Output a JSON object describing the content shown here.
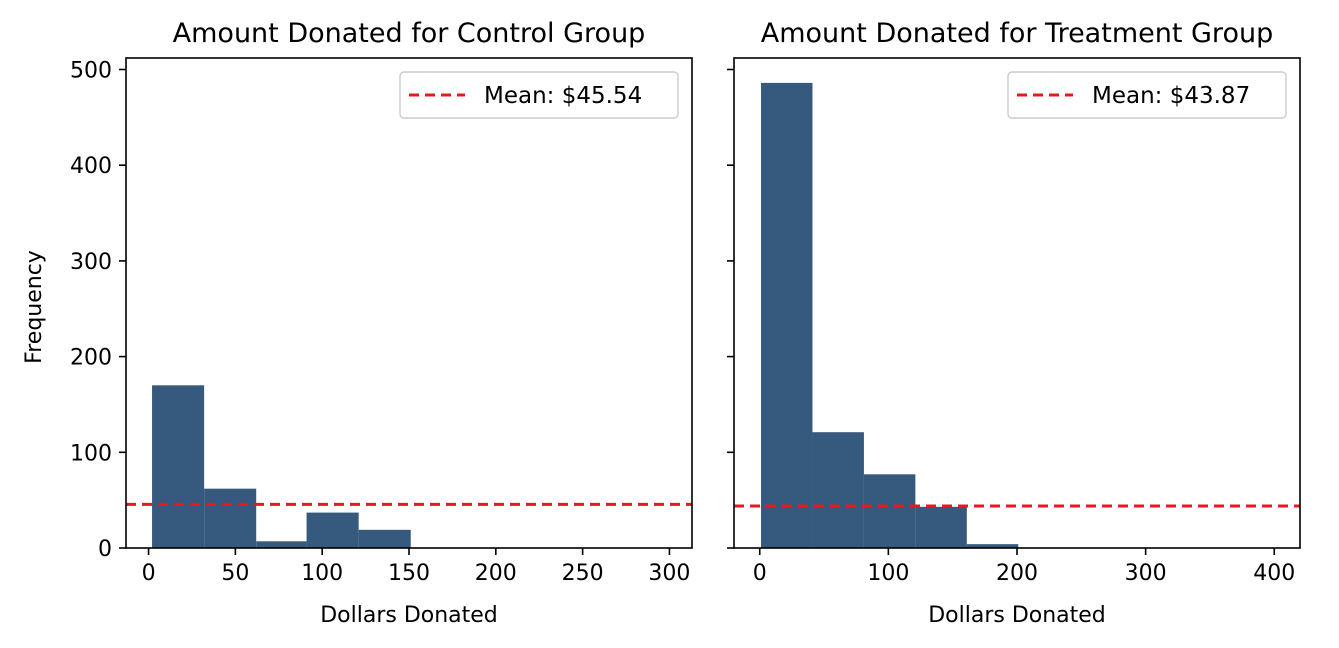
{
  "chart_data": [
    {
      "type": "bar",
      "title": "Amount Donated for Control Group",
      "xlabel": "Dollars Donated",
      "ylabel": "Frequency",
      "xlim": [
        -13,
        313
      ],
      "ylim": [
        0,
        512
      ],
      "xticks": [
        0,
        50,
        100,
        150,
        200,
        250,
        300
      ],
      "yticks": [
        0,
        100,
        200,
        300,
        400,
        500
      ],
      "bins": [
        {
          "x0": 2,
          "x1": 32,
          "value": 170
        },
        {
          "x0": 32,
          "x1": 62,
          "value": 62
        },
        {
          "x0": 62,
          "x1": 91,
          "value": 7
        },
        {
          "x0": 91,
          "x1": 121,
          "value": 37
        },
        {
          "x0": 121,
          "x1": 151,
          "value": 19
        },
        {
          "x0": 151,
          "x1": 181,
          "value": 0
        },
        {
          "x0": 181,
          "x1": 210,
          "value": 0
        },
        {
          "x0": 210,
          "x1": 240,
          "value": 0
        },
        {
          "x0": 240,
          "x1": 270,
          "value": 0
        },
        {
          "x0": 270,
          "x1": 300,
          "value": 0
        }
      ],
      "mean": 45.54,
      "legend": "Mean: $45.54",
      "legend_position": "top-right",
      "bar_color": "#365a7d",
      "mean_color": "#e41a1c"
    },
    {
      "type": "bar",
      "title": "Amount Donated for Treatment Group",
      "xlabel": "Dollars Donated",
      "xlim": [
        -20,
        420
      ],
      "ylim": [
        0,
        512
      ],
      "xticks": [
        0,
        100,
        200,
        300,
        400
      ],
      "yticks": [
        0,
        100,
        200,
        300,
        400,
        500
      ],
      "bins": [
        {
          "x0": 1,
          "x1": 41,
          "value": 486
        },
        {
          "x0": 41,
          "x1": 81,
          "value": 121
        },
        {
          "x0": 81,
          "x1": 121,
          "value": 77
        },
        {
          "x0": 121,
          "x1": 161,
          "value": 43
        },
        {
          "x0": 161,
          "x1": 201,
          "value": 4
        },
        {
          "x0": 201,
          "x1": 241,
          "value": 0
        },
        {
          "x0": 241,
          "x1": 281,
          "value": 0
        },
        {
          "x0": 281,
          "x1": 320,
          "value": 0
        },
        {
          "x0": 320,
          "x1": 360,
          "value": 0
        },
        {
          "x0": 360,
          "x1": 400,
          "value": 0
        }
      ],
      "mean": 43.87,
      "legend": "Mean: $43.87",
      "legend_position": "top-right",
      "bar_color": "#365a7d",
      "mean_color": "#e41a1c"
    }
  ]
}
